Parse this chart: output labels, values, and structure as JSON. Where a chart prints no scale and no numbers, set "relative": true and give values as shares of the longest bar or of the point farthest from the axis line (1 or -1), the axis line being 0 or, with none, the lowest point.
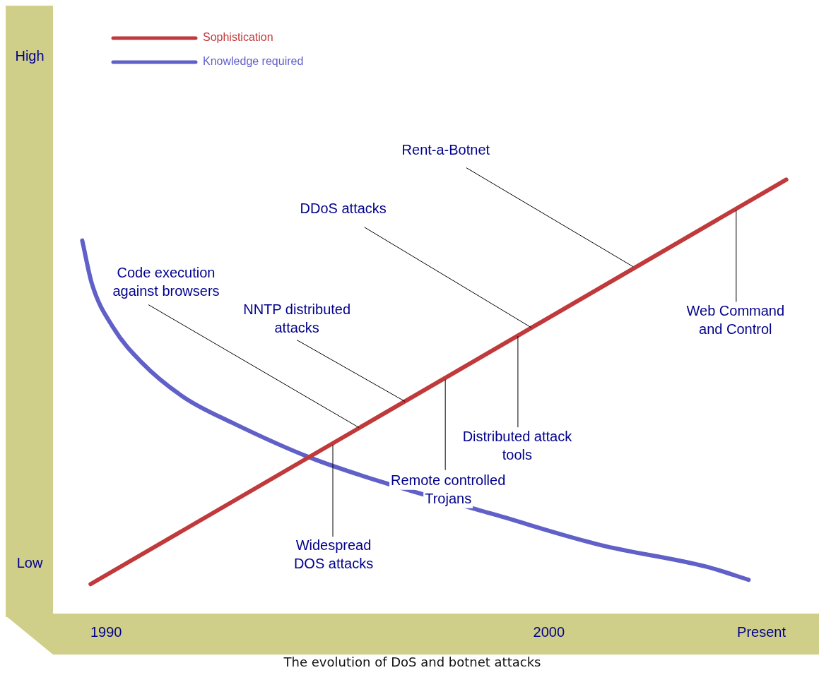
{
  "chart_data": {
    "type": "line",
    "title": "The evolution of DoS and botnet attacks",
    "xlim": [
      1988.8,
      2006.1
    ],
    "xticks": [
      1990,
      2000,
      {
        "value": 2004.8,
        "label": "Present"
      }
    ],
    "relative": true,
    "grid": false,
    "legend": "top left",
    "marker": "none",
    "line_style": "solid",
    "series": [
      {
        "name": "Sophistication",
        "color": "#c0393b",
        "x": [
          1989.65,
          2005.36
        ],
        "values": [
          0.07,
          1
        ]
      },
      {
        "name": "Knowledge required",
        "color": "#6060c8",
        "x": [
          1989.46,
          1989.68,
          1990.16,
          1990.8,
          1991.75,
          1992.87,
          1994.63,
          1996.38,
          1998.77,
          2001.16,
          2003.56,
          2004.51
        ],
        "values": [
          0.86,
          0.76,
          0.66,
          0.58,
          0.5,
          0.44,
          0.36,
          0.3,
          0.23,
          0.16,
          0.11,
          0.08
        ]
      }
    ],
    "annotations": [
      {
        "text": "Code execution\nagainst browsers",
        "x": 1995.71,
        "y": 0.43
      },
      {
        "text": "NNTP distributed\nattacks",
        "x": 1996.75,
        "y": 0.49
      },
      {
        "text": "DDoS attacks",
        "x": 1999.6,
        "y": 0.66
      },
      {
        "text": "Rent-a-Botnet",
        "x": 2001.9,
        "y": 0.8
      },
      {
        "text": "Widespread\nDOS attacks",
        "x": 1995.12,
        "y": 0.39
      },
      {
        "text": "Remote controlled\nTrojans",
        "x": 1997.66,
        "y": 0.54
      },
      {
        "text": "Distributed attack\ntools",
        "x": 1999.3,
        "y": 0.64
      },
      {
        "text": "Web Command\nand Control",
        "x": 2004.23,
        "y": 0.93
      },
      "High",
      "Low"
    ]
  }
}
